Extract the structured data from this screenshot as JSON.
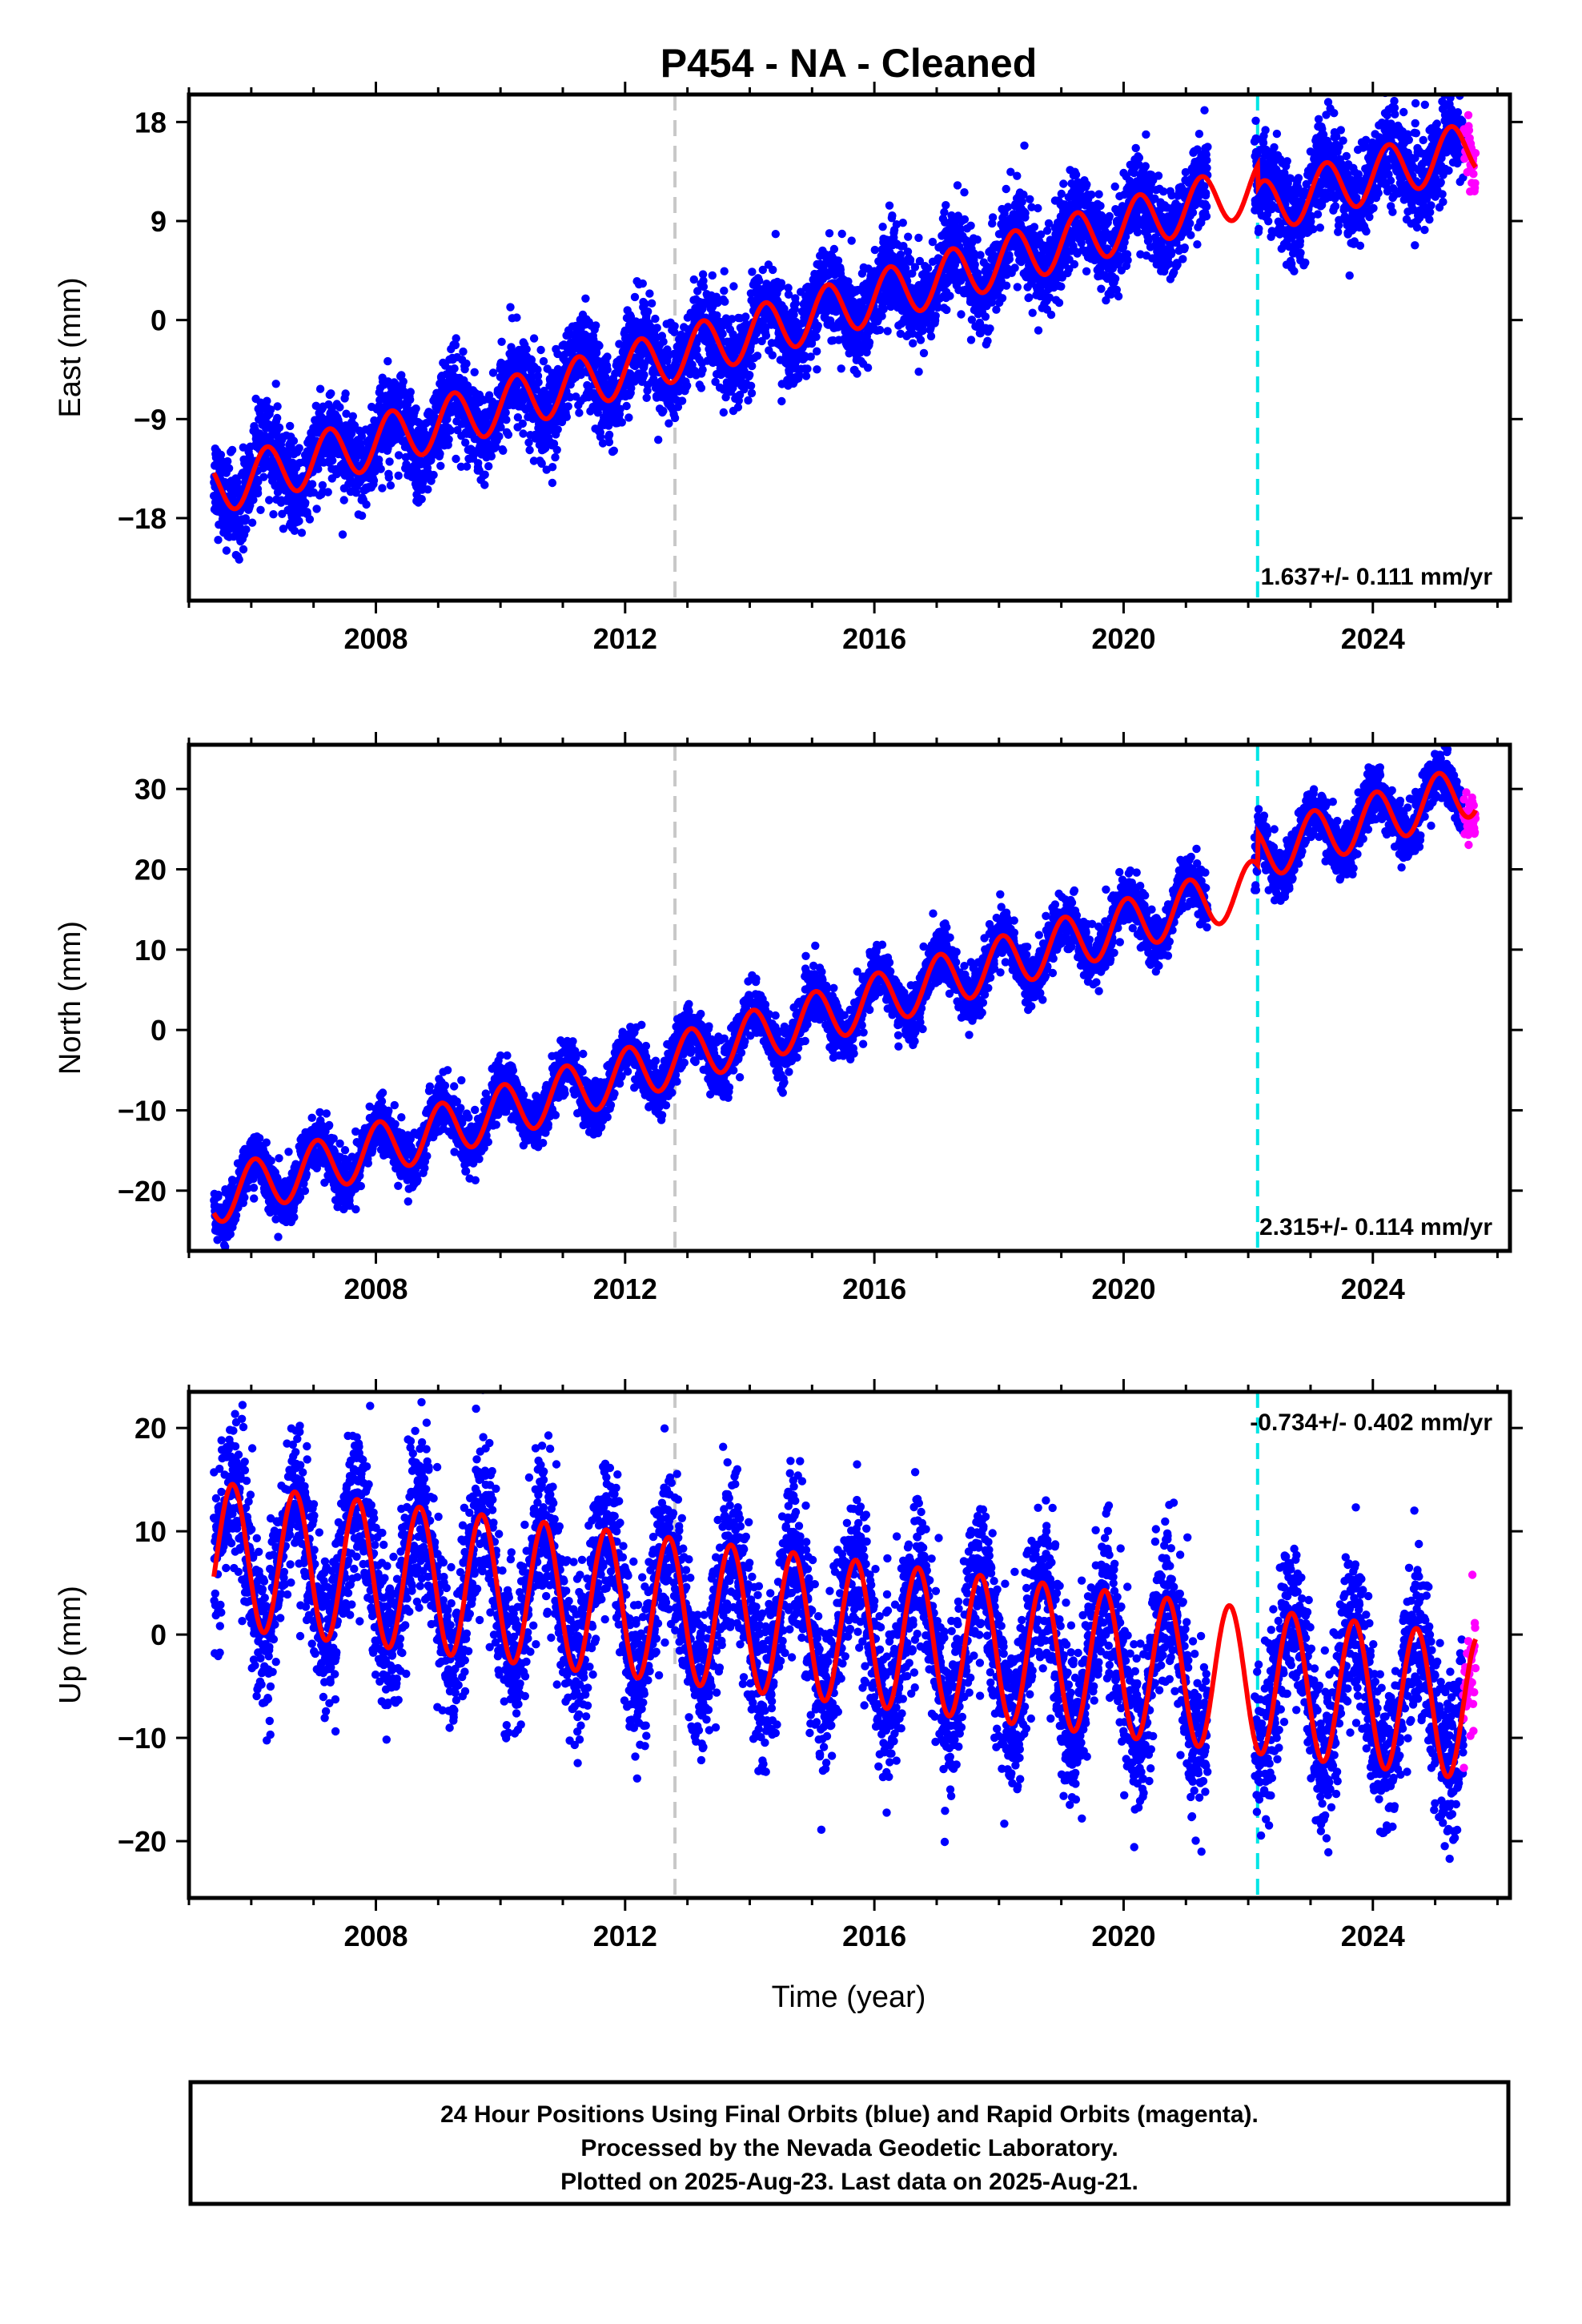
{
  "chart_data": {
    "type": "scatter",
    "title": "P454  - NA - Cleaned",
    "xlabel": "Time (year)",
    "xlim": [
      2005.0,
      2026.2
    ],
    "x_ticks": [
      2008,
      2012,
      2016,
      2020,
      2024
    ],
    "x_tick_labels": [
      "2008",
      "2012",
      "2016",
      "2020",
      "2024"
    ],
    "reference_lines": [
      {
        "x": 2012.8,
        "color": "#c8c8c8"
      },
      {
        "x": 2022.15,
        "color": "#00e5e5"
      }
    ],
    "panels": [
      {
        "ylabel": "East (mm)",
        "ylim": [
          -25.5,
          20.5
        ],
        "y_ticks": [
          18,
          9,
          0,
          -9,
          -18
        ],
        "y_tick_labels": [
          "18",
          "9",
          "0",
          "−9",
          "−18"
        ],
        "rate_label": "1.637+/- 0.111 mm/yr",
        "rate_position": "bottom-right",
        "trend": {
          "a": -14.5,
          "b": 1.637,
          "t0": 2005.9
        },
        "seasonal": {
          "amplitude": 2.4,
          "phase": 0.0
        },
        "steps": [
          {
            "x": 2022.15,
            "dy": -2.0
          }
        ],
        "scatter": 2.0
      },
      {
        "ylabel": "North (mm)",
        "ylim": [
          -27.5,
          35.5
        ],
        "y_ticks": [
          30,
          20,
          10,
          0,
          -10,
          -20
        ],
        "y_tick_labels": [
          "30",
          "20",
          "10",
          "0",
          "−10",
          "−20"
        ],
        "rate_label": "2.315+/- 0.114 mm/yr",
        "rate_position": "bottom-right",
        "trend": {
          "a": -19.7,
          "b": 2.315,
          "t0": 2005.9
        },
        "seasonal": {
          "amplitude": 3.3,
          "phase": 0.2
        },
        "steps": [
          {
            "x": 2022.15,
            "dy": 4.0
          }
        ],
        "scatter": 1.6
      },
      {
        "ylabel": "Up (mm)",
        "ylim": [
          -25.5,
          23.5
        ],
        "y_ticks": [
          20,
          10,
          0,
          -10,
          -20
        ],
        "y_tick_labels": [
          "20",
          "10",
          "0",
          "−10",
          "−20"
        ],
        "rate_label": "-0.734+/- 0.402 mm/yr",
        "rate_position": "top-right",
        "trend": {
          "a": 7.4,
          "b": -0.734,
          "t0": 2005.9
        },
        "seasonal": {
          "amplitude": 7.0,
          "phase": 0.55
        },
        "steps": [],
        "scatter": 3.8
      }
    ],
    "series": [
      {
        "name": "Final Orbits",
        "color": "#0000ff",
        "x_range": [
          2005.4,
          2025.45
        ]
      },
      {
        "name": "Rapid Orbits",
        "color": "#ff00ff",
        "x_range": [
          2025.45,
          2025.65
        ]
      },
      {
        "name": "Model fit",
        "color": "#ff0000"
      }
    ]
  },
  "footer": {
    "line1": "24 Hour Positions Using Final Orbits (blue) and Rapid Orbits (magenta).",
    "line2": "Processed by the Nevada Geodetic Laboratory.",
    "line3": "Plotted on 2025-Aug-23. Last data on 2025-Aug-21."
  }
}
